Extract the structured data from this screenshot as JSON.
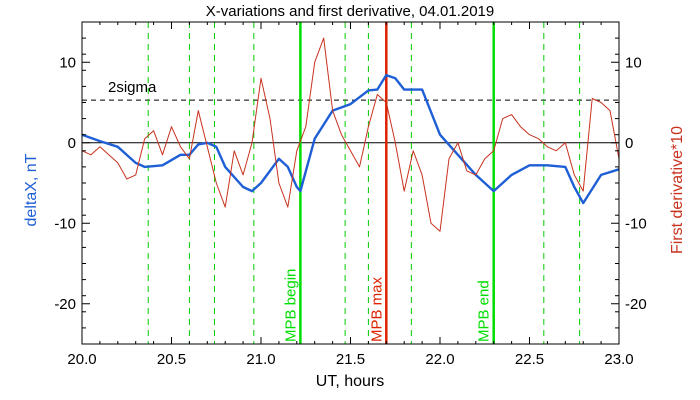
{
  "chart_data": {
    "type": "line",
    "title": "X-variations and first derivative, 04.01.2019",
    "xlabel": "UT, hours",
    "ylabel_left": "deltaX, nT",
    "ylabel_right": "First derivative*10",
    "xlim": [
      20.0,
      23.0
    ],
    "ylim": [
      -25,
      15
    ],
    "x_ticks": [
      "20.0",
      "20.5",
      "21.0",
      "21.5",
      "22.0",
      "22.5",
      "23.0"
    ],
    "y_ticks": [
      "10",
      "0",
      "-10",
      "-20"
    ],
    "sigma_label": "2sigma",
    "sigma_level": 5.3,
    "zero_level": 0,
    "colors": {
      "deltaX": "#1f5fd6",
      "derivative": "#c8321e",
      "mpb_begin_end": "#00dd00",
      "mpb_max": "#dd2200",
      "dashed_markers": "#00cc00"
    },
    "series": [
      {
        "name": "deltaX, nT",
        "x": [
          20.0,
          20.1,
          20.2,
          20.3,
          20.35,
          20.45,
          20.55,
          20.6,
          20.65,
          20.7,
          20.75,
          20.8,
          20.9,
          20.95,
          21.0,
          21.1,
          21.15,
          21.2,
          21.22,
          21.3,
          21.4,
          21.5,
          21.6,
          21.65,
          21.7,
          21.75,
          21.8,
          21.9,
          22.0,
          22.1,
          22.2,
          22.3,
          22.4,
          22.5,
          22.6,
          22.7,
          22.75,
          22.8,
          22.9,
          23.0
        ],
        "values": [
          1.0,
          0.2,
          -0.5,
          -2.5,
          -3.0,
          -2.8,
          -1.5,
          -1.5,
          -0.2,
          0.0,
          -0.5,
          -3.0,
          -5.5,
          -6.0,
          -5.0,
          -2.0,
          -3.0,
          -5.5,
          -6.0,
          0.5,
          4.0,
          4.8,
          6.5,
          6.6,
          8.4,
          8.0,
          6.6,
          6.6,
          1.0,
          -1.5,
          -4.0,
          -6.0,
          -4.0,
          -2.8,
          -2.8,
          -3.0,
          -5.5,
          -7.5,
          -4.0,
          -3.3
        ]
      },
      {
        "name": "First derivative*10",
        "x": [
          20.0,
          20.05,
          20.1,
          20.15,
          20.2,
          20.25,
          20.3,
          20.35,
          20.4,
          20.45,
          20.5,
          20.55,
          20.6,
          20.65,
          20.7,
          20.75,
          20.8,
          20.85,
          20.9,
          20.95,
          21.0,
          21.05,
          21.1,
          21.15,
          21.2,
          21.25,
          21.3,
          21.35,
          21.4,
          21.45,
          21.5,
          21.55,
          21.6,
          21.65,
          21.7,
          21.75,
          21.8,
          21.85,
          21.9,
          21.95,
          22.0,
          22.05,
          22.1,
          22.15,
          22.2,
          22.25,
          22.3,
          22.35,
          22.4,
          22.45,
          22.5,
          22.55,
          22.6,
          22.65,
          22.7,
          22.75,
          22.8,
          22.85,
          22.9,
          22.95,
          23.0
        ],
        "values": [
          -1.0,
          -1.5,
          -0.5,
          -1.5,
          -2.5,
          -4.5,
          -4.0,
          0.5,
          1.5,
          -1.5,
          2.0,
          -0.5,
          -2.0,
          4.0,
          -0.5,
          -5.0,
          -8.0,
          -1.0,
          -4.0,
          0.0,
          8.0,
          3.0,
          -5.0,
          -8.0,
          -1.0,
          2.0,
          10.0,
          13.0,
          4.0,
          1.0,
          -1.0,
          -3.0,
          2.0,
          6.0,
          5.0,
          0.0,
          -6.0,
          -1.0,
          -4.0,
          -10.0,
          -11.0,
          -2.0,
          0.0,
          -3.5,
          -4.0,
          -2.0,
          -1.0,
          3.0,
          3.5,
          2.0,
          1.0,
          0.5,
          -0.5,
          -1.0,
          0.0,
          -4.0,
          -6.0,
          5.5,
          5.0,
          4.0,
          -2.0
        ]
      }
    ],
    "vertical_lines": [
      {
        "x": 21.22,
        "label": "MPB begin",
        "role": "mpb_begin_end",
        "solid": true
      },
      {
        "x": 21.7,
        "label": "MPB max",
        "role": "mpb_max",
        "solid": true
      },
      {
        "x": 22.3,
        "label": "MPB end",
        "role": "mpb_begin_end",
        "solid": true
      },
      {
        "x": 20.37,
        "label": "",
        "role": "dashed_markers",
        "solid": false
      },
      {
        "x": 20.6,
        "label": "",
        "role": "dashed_markers",
        "solid": false
      },
      {
        "x": 20.74,
        "label": "",
        "role": "dashed_markers",
        "solid": false
      },
      {
        "x": 20.96,
        "label": "",
        "role": "dashed_markers",
        "solid": false
      },
      {
        "x": 21.47,
        "label": "",
        "role": "dashed_markers",
        "solid": false
      },
      {
        "x": 21.6,
        "label": "",
        "role": "dashed_markers",
        "solid": false
      },
      {
        "x": 21.84,
        "label": "",
        "role": "dashed_markers",
        "solid": false
      },
      {
        "x": 22.58,
        "label": "",
        "role": "dashed_markers",
        "solid": false
      },
      {
        "x": 22.78,
        "label": "",
        "role": "dashed_markers",
        "solid": false
      }
    ]
  }
}
